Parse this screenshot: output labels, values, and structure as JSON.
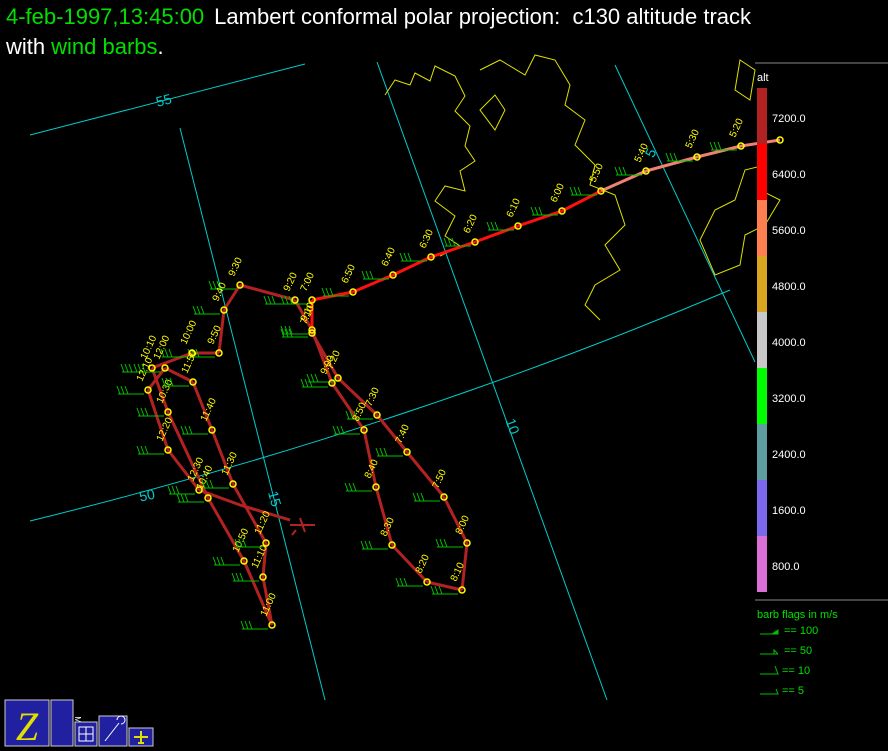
{
  "header": {
    "time": "4-feb-1997,13:45:00",
    "title": "Lambert conformal polar projection:  c130 altitude track",
    "with": "with",
    "wind_barbs": "wind barbs",
    "period": "."
  },
  "grid_labels": [
    "55",
    "50",
    "5",
    "10",
    "15"
  ],
  "track": {
    "times": [
      "5:20",
      "5:30",
      "5:40",
      "5:50",
      "6:00",
      "6:10",
      "6:20",
      "6:30",
      "6:40",
      "6:50",
      "7:00",
      "7:10",
      "7:20",
      "7:30",
      "7:40",
      "7:50",
      "8:00",
      "8:10",
      "8:20",
      "8:30",
      "8:40",
      "8:50",
      "9:00",
      "9:10",
      "9:20",
      "9:30",
      "9:40",
      "9:50",
      "10:00",
      "10:10",
      "10:30",
      "10:40",
      "10:50",
      "11:00",
      "11:10",
      "11:20",
      "11:30",
      "11:40",
      "11:50",
      "12:00",
      "12:10",
      "12:20",
      "12:30"
    ]
  },
  "colorbar": {
    "label": "alt",
    "ticks": [
      "7200.0",
      "6400.0",
      "5600.0",
      "4800.0",
      "4000.0",
      "3200.0",
      "2400.0",
      "1600.0",
      "800.0"
    ]
  },
  "barb_legend": {
    "title": "barb flags in m/s",
    "entries": [
      "== 100",
      "== 50",
      "== 10",
      "== 5"
    ]
  },
  "icons": {
    "map": "MAP"
  }
}
